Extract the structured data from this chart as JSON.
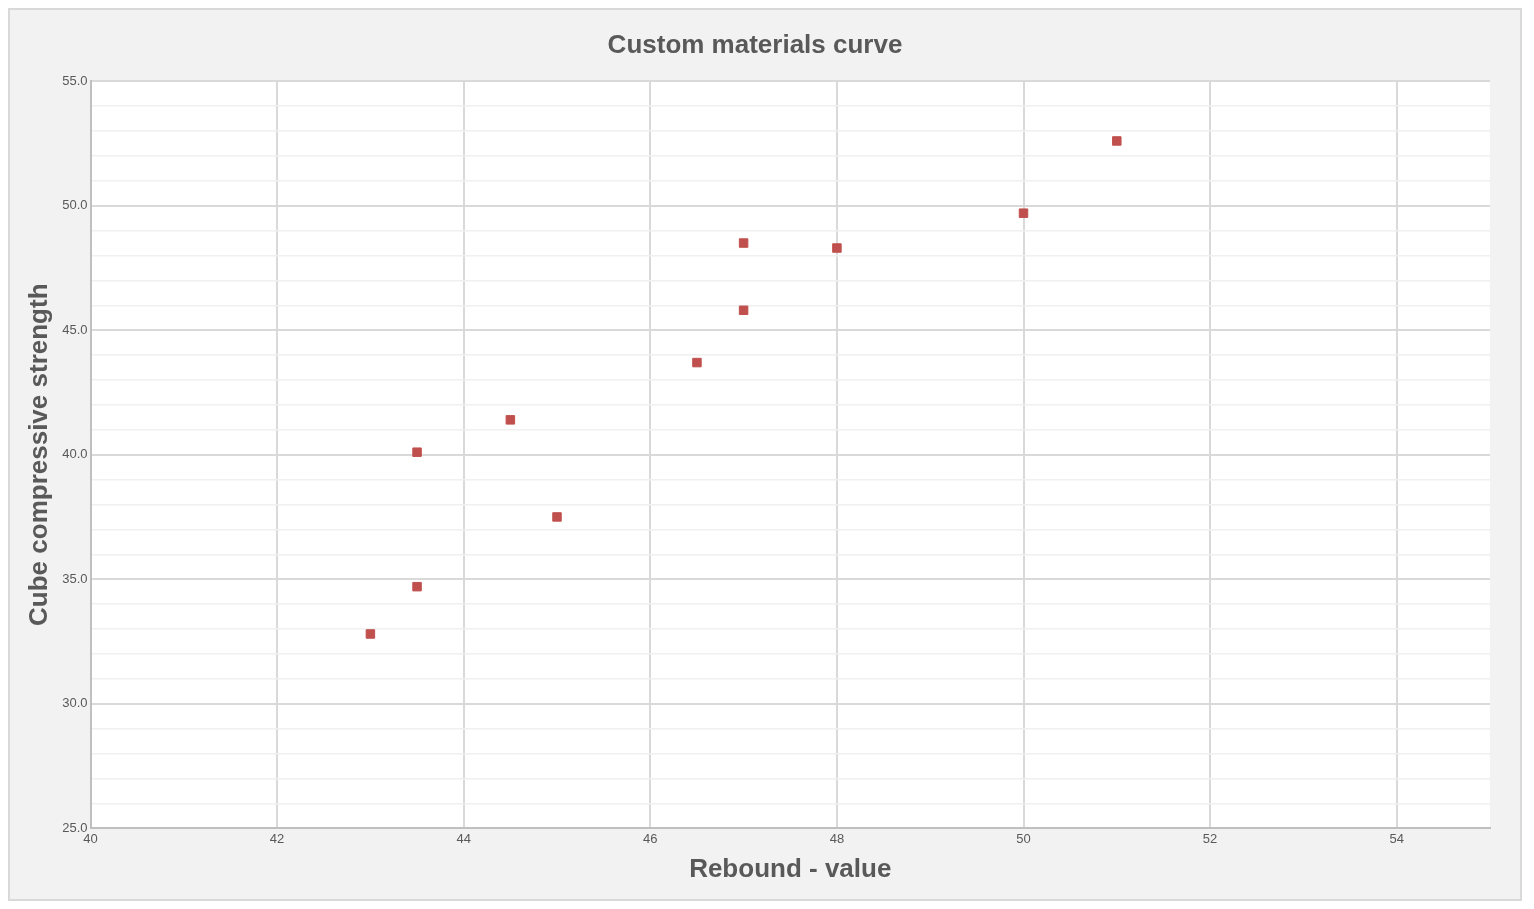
{
  "chart_data": {
    "type": "scatter",
    "title": "Custom materials curve",
    "xlabel": "Rebound - value",
    "ylabel": "Cube compressive strength",
    "x": [
      43,
      43.5,
      45,
      43.5,
      44.5,
      46.5,
      47,
      47,
      48,
      50,
      51
    ],
    "values": [
      32.8,
      34.7,
      37.5,
      40.1,
      41.4,
      43.7,
      45.8,
      48.5,
      48.3,
      49.7,
      52.6
    ],
    "color": "#c0504d",
    "marker": "square",
    "grid": true,
    "legend": false,
    "xlim": [
      40,
      55
    ],
    "xticks": [
      40,
      42,
      44,
      46,
      48,
      50,
      52,
      54
    ],
    "ylim": [
      25,
      55
    ],
    "yticks": [
      {
        "value": 25,
        "label": "25.0"
      },
      {
        "value": 26,
        "label": null
      },
      {
        "value": 27,
        "label": null
      },
      {
        "value": 28,
        "label": null
      },
      {
        "value": 29,
        "label": null
      },
      {
        "value": 30,
        "label": "30.0"
      },
      {
        "value": 31,
        "label": null
      },
      {
        "value": 32,
        "label": null
      },
      {
        "value": 33,
        "label": null
      },
      {
        "value": 34,
        "label": null
      },
      {
        "value": 35,
        "label": "35.0"
      },
      {
        "value": 36,
        "label": null
      },
      {
        "value": 37,
        "label": null
      },
      {
        "value": 38,
        "label": null
      },
      {
        "value": 39,
        "label": null
      },
      {
        "value": 40,
        "label": "40.0"
      },
      {
        "value": 41,
        "label": null
      },
      {
        "value": 42,
        "label": null
      },
      {
        "value": 43,
        "label": null
      },
      {
        "value": 44,
        "label": null
      },
      {
        "value": 45,
        "label": "45.0"
      },
      {
        "value": 46,
        "label": null
      },
      {
        "value": 47,
        "label": null
      },
      {
        "value": 48,
        "label": null
      },
      {
        "value": 49,
        "label": null
      },
      {
        "value": 50,
        "label": "50.0"
      },
      {
        "value": 51,
        "label": null
      },
      {
        "value": 52,
        "label": null
      },
      {
        "value": 53,
        "label": null
      },
      {
        "value": 54,
        "label": null
      },
      {
        "value": 55,
        "label": "55.0"
      }
    ]
  }
}
